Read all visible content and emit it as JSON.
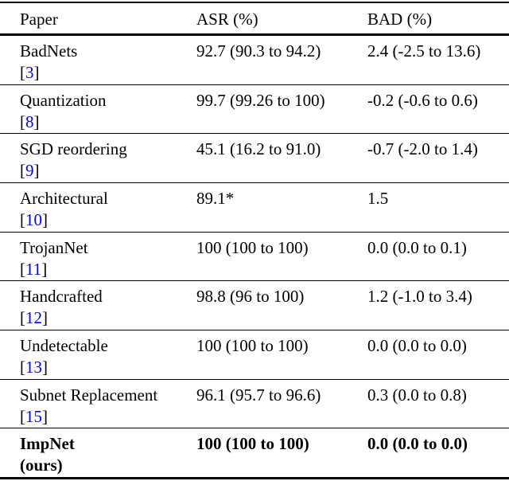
{
  "table": {
    "columns": [
      "Paper",
      "ASR (%)",
      "BAD (%)"
    ],
    "cite_open": "[",
    "cite_close": "]",
    "rows": [
      {
        "paper": "BadNets",
        "cite": "3",
        "asr": "92.7 (90.3 to 94.2)",
        "bad": "2.4 (-2.5 to 13.6)"
      },
      {
        "paper": "Quantization",
        "cite": "8",
        "asr": "99.7 (99.26 to 100)",
        "bad": "-0.2 (-0.6 to 0.6)"
      },
      {
        "paper": "SGD reordering",
        "cite": "9",
        "asr": "45.1 (16.2 to 91.0)",
        "bad": "-0.7 (-2.0 to 1.4)"
      },
      {
        "paper": "Architectural",
        "cite": "10",
        "asr": "89.1*",
        "bad": "1.5"
      },
      {
        "paper": "TrojanNet",
        "cite": "11",
        "asr": "100 (100 to 100)",
        "bad": "0.0 (0.0 to 0.1)"
      },
      {
        "paper": "Handcrafted",
        "cite": "12",
        "asr": "98.8 (96 to 100)",
        "bad": "1.2 (-1.0 to 3.4)"
      },
      {
        "paper": "Undetectable",
        "cite": "13",
        "asr": "100 (100 to 100)",
        "bad": "0.0 (0.0 to 0.0)"
      },
      {
        "paper": "Subnet Replacement",
        "cite": "15",
        "asr": "96.1 (95.7 to 96.6)",
        "bad": "0.3 (0.0 to 0.8)"
      },
      {
        "paper": "ImpNet",
        "suffix": "(ours)",
        "asr": "100 (100 to 100)",
        "bad": "0.0 (0.0 to 0.0)"
      }
    ],
    "colors": {
      "citation": "#0000EE",
      "text": "#000000",
      "rule": "#000000",
      "background": "#FFFFFF"
    }
  }
}
